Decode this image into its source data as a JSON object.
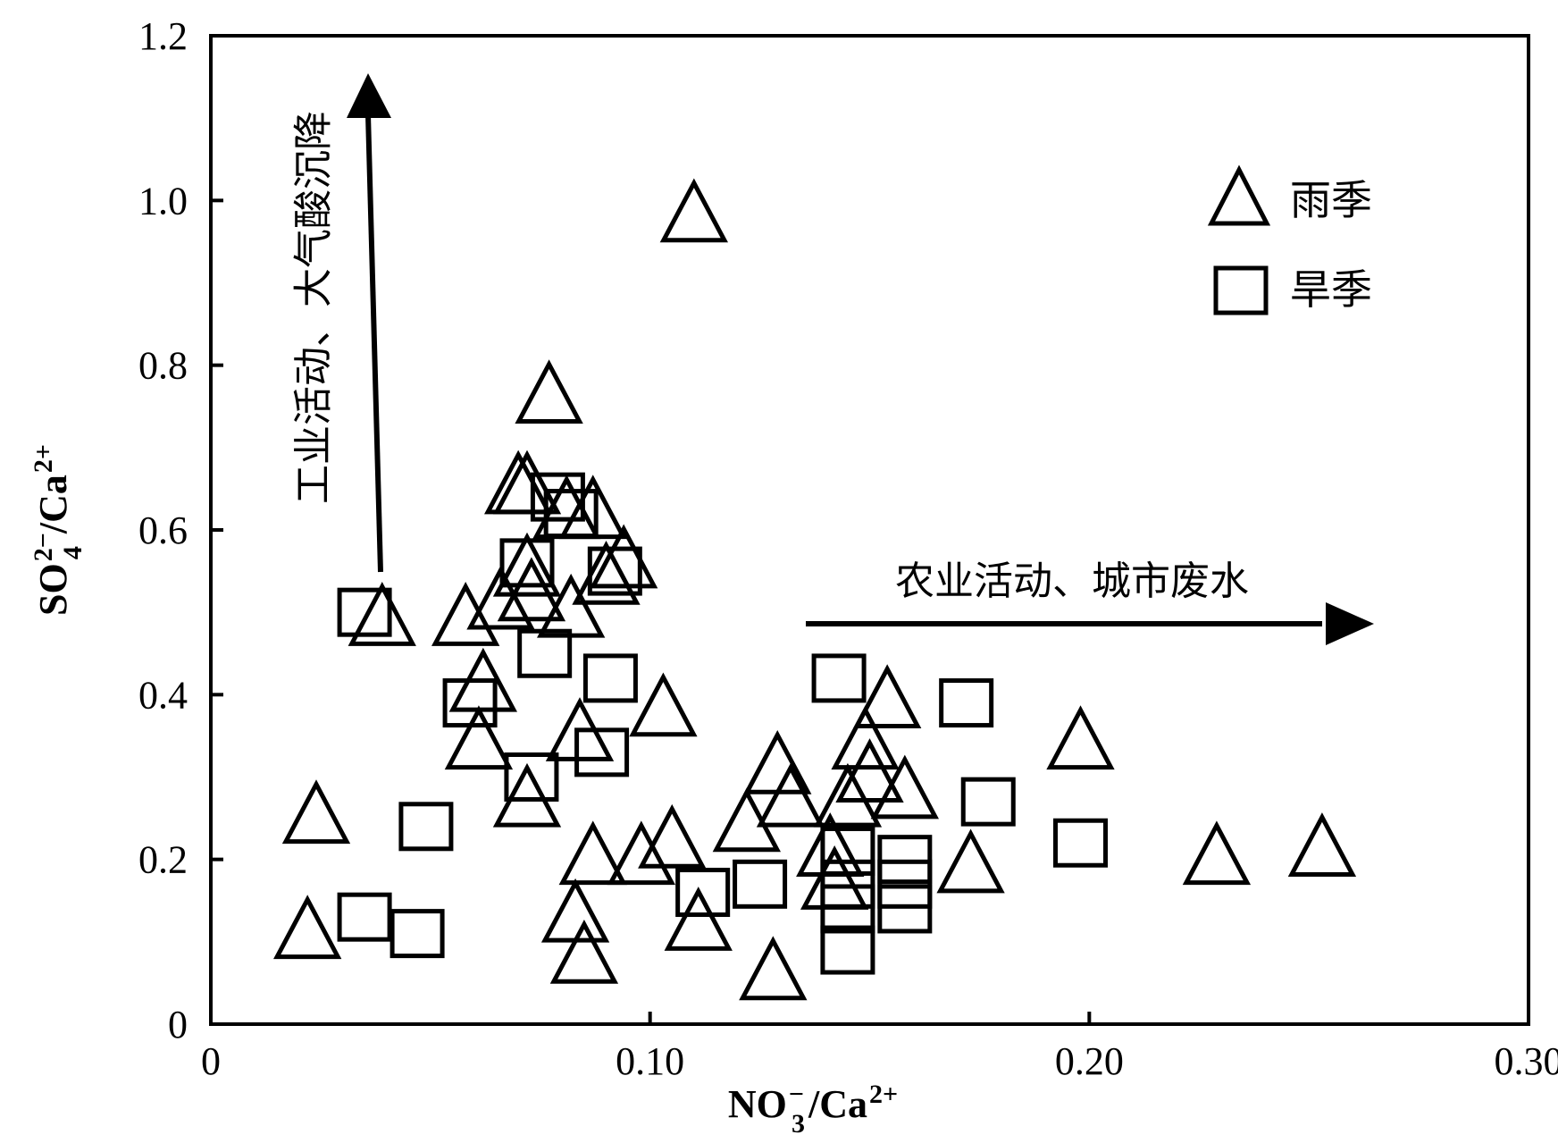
{
  "chart_data": {
    "type": "scatter",
    "xlabel": {
      "base": "NO",
      "sub": "3",
      "sup": "−",
      "rest": "/Ca",
      "sup2": "2+"
    },
    "ylabel": {
      "base": "SO",
      "sub": "4",
      "sup": "2−",
      "rest": "/Ca",
      "sup2": "2+"
    },
    "xlim": [
      0,
      0.3
    ],
    "ylim": [
      0,
      1.2
    ],
    "xticks": [
      {
        "value": 0,
        "label": "0"
      },
      {
        "value": 0.1,
        "label": "0.10"
      },
      {
        "value": 0.2,
        "label": "0.20"
      },
      {
        "value": 0.3,
        "label": "0.30"
      }
    ],
    "yticks": [
      {
        "value": 0,
        "label": "0"
      },
      {
        "value": 0.2,
        "label": "0.2"
      },
      {
        "value": 0.4,
        "label": "0.4"
      },
      {
        "value": 0.6,
        "label": "0.6"
      },
      {
        "value": 0.8,
        "label": "0.8"
      },
      {
        "value": 1.0,
        "label": "1.0"
      },
      {
        "value": 1.2,
        "label": "1.2"
      }
    ],
    "legend_position": "top-right",
    "series": [
      {
        "name": "雨季",
        "marker": "triangle",
        "points": [
          [
            0.024,
            0.25
          ],
          [
            0.022,
            0.11
          ],
          [
            0.039,
            0.49
          ],
          [
            0.058,
            0.49
          ],
          [
            0.062,
            0.41
          ],
          [
            0.061,
            0.34
          ],
          [
            0.066,
            0.51
          ],
          [
            0.07,
            0.65
          ],
          [
            0.072,
            0.65
          ],
          [
            0.072,
            0.55
          ],
          [
            0.072,
            0.27
          ],
          [
            0.073,
            0.52
          ],
          [
            0.077,
            0.76
          ],
          [
            0.081,
            0.62
          ],
          [
            0.082,
            0.5
          ],
          [
            0.084,
            0.35
          ],
          [
            0.083,
            0.13
          ],
          [
            0.085,
            0.08
          ],
          [
            0.087,
            0.62
          ],
          [
            0.087,
            0.2
          ],
          [
            0.09,
            0.54
          ],
          [
            0.094,
            0.56
          ],
          [
            0.098,
            0.2
          ],
          [
            0.103,
            0.38
          ],
          [
            0.105,
            0.22
          ],
          [
            0.111,
            0.12
          ],
          [
            0.11,
            0.98
          ],
          [
            0.122,
            0.24
          ],
          [
            0.128,
            0.06
          ],
          [
            0.129,
            0.31
          ],
          [
            0.132,
            0.27
          ],
          [
            0.141,
            0.21
          ],
          [
            0.142,
            0.17
          ],
          [
            0.145,
            0.27
          ],
          [
            0.149,
            0.34
          ],
          [
            0.15,
            0.3
          ],
          [
            0.154,
            0.39
          ],
          [
            0.158,
            0.28
          ],
          [
            0.173,
            0.19
          ],
          [
            0.198,
            0.34
          ],
          [
            0.229,
            0.2
          ],
          [
            0.253,
            0.21
          ]
        ]
      },
      {
        "name": "旱季",
        "marker": "square",
        "points": [
          [
            0.035,
            0.5
          ],
          [
            0.035,
            0.13
          ],
          [
            0.047,
            0.11
          ],
          [
            0.049,
            0.24
          ],
          [
            0.059,
            0.39
          ],
          [
            0.072,
            0.56
          ],
          [
            0.073,
            0.3
          ],
          [
            0.076,
            0.45
          ],
          [
            0.079,
            0.64
          ],
          [
            0.082,
            0.62
          ],
          [
            0.089,
            0.33
          ],
          [
            0.091,
            0.42
          ],
          [
            0.092,
            0.55
          ],
          [
            0.112,
            0.16
          ],
          [
            0.125,
            0.17
          ],
          [
            0.143,
            0.42
          ],
          [
            0.145,
            0.21
          ],
          [
            0.145,
            0.17
          ],
          [
            0.145,
            0.14
          ],
          [
            0.145,
            0.09
          ],
          [
            0.158,
            0.2
          ],
          [
            0.158,
            0.17
          ],
          [
            0.158,
            0.14
          ],
          [
            0.172,
            0.39
          ],
          [
            0.177,
            0.27
          ],
          [
            0.198,
            0.22
          ]
        ]
      }
    ],
    "annotations": [
      {
        "id": "vertical",
        "text": "工业活动、大气酸沉降",
        "direction": "up"
      },
      {
        "id": "horizontal",
        "text": "农业活动、城市废水",
        "direction": "right"
      }
    ]
  }
}
